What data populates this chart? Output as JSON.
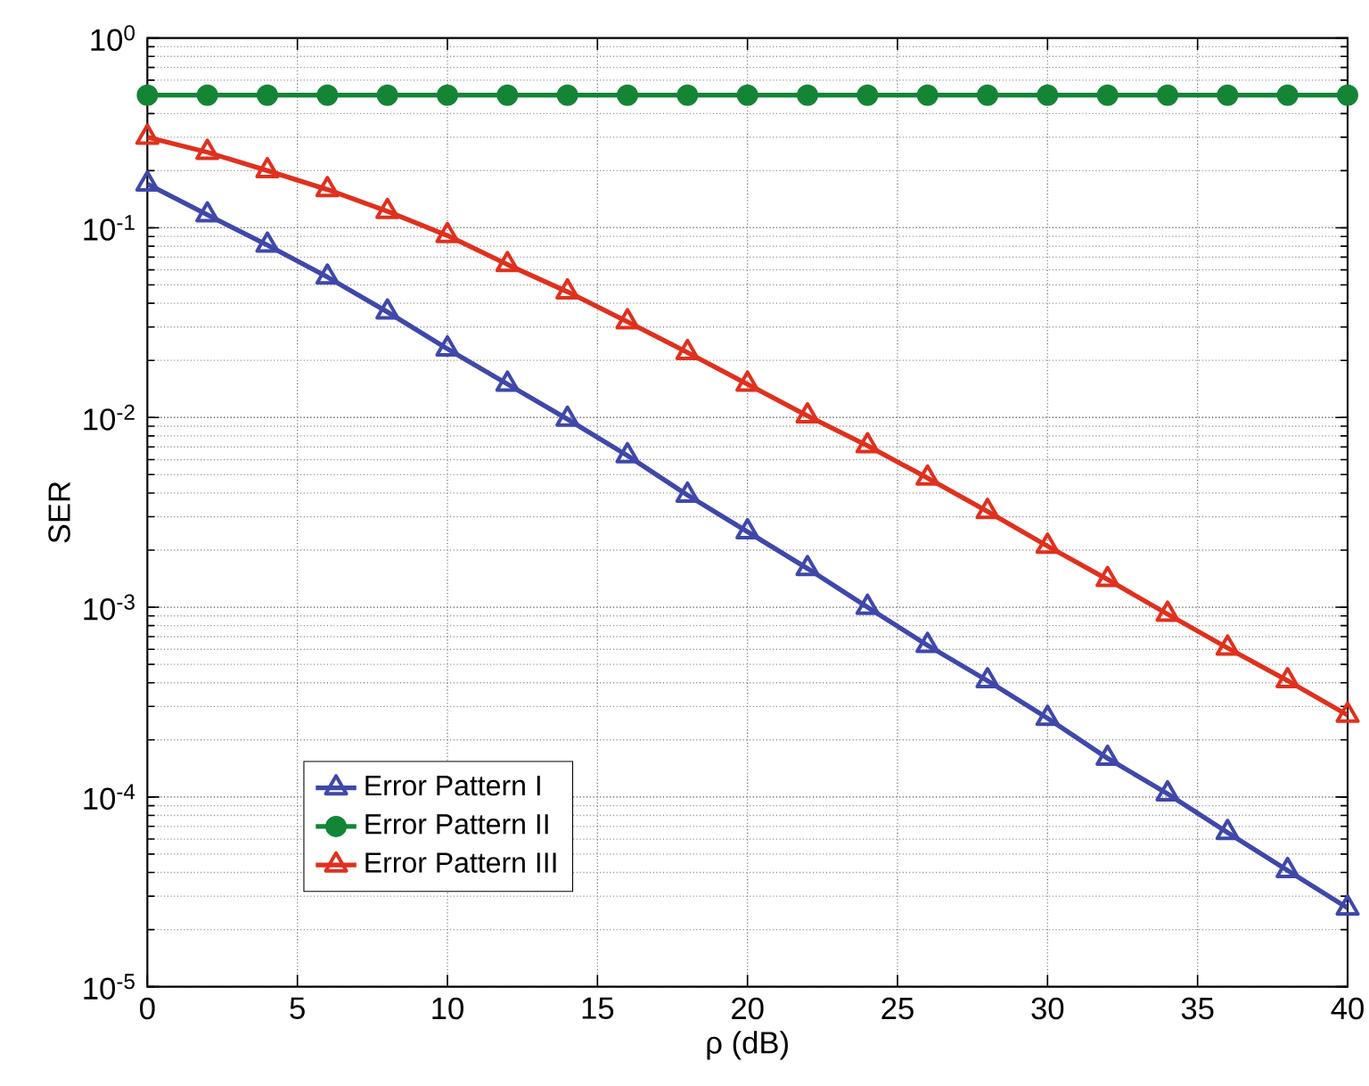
{
  "chart_data": {
    "type": "line",
    "xlabel": "ρ (dB)",
    "ylabel": "SER",
    "x": [
      0,
      2,
      4,
      6,
      8,
      10,
      12,
      14,
      16,
      18,
      20,
      22,
      24,
      26,
      28,
      30,
      32,
      34,
      36,
      38,
      40
    ],
    "series": [
      {
        "name": "Error Pattern I",
        "color": "#3f48aa",
        "marker": "triangle",
        "values": [
          0.17,
          0.117,
          0.081,
          0.055,
          0.036,
          0.023,
          0.015,
          0.0098,
          0.0063,
          0.0039,
          0.0025,
          0.0016,
          0.001,
          0.00063,
          0.00041,
          0.00026,
          0.00016,
          0.000104,
          6.5e-05,
          4.1e-05,
          2.6e-05
        ]
      },
      {
        "name": "Error Pattern II",
        "color": "#138535",
        "marker": "circle",
        "values": [
          0.5,
          0.5,
          0.5,
          0.5,
          0.5,
          0.5,
          0.5,
          0.5,
          0.5,
          0.5,
          0.5,
          0.5,
          0.5,
          0.5,
          0.5,
          0.5,
          0.5,
          0.5,
          0.5,
          0.5,
          0.5
        ]
      },
      {
        "name": "Error Pattern III",
        "color": "#e0301e",
        "marker": "triangle",
        "values": [
          0.3,
          0.25,
          0.2,
          0.159,
          0.122,
          0.091,
          0.064,
          0.046,
          0.032,
          0.022,
          0.015,
          0.0102,
          0.0071,
          0.0048,
          0.0032,
          0.0021,
          0.0014,
          0.00092,
          0.00061,
          0.00041,
          0.00027
        ]
      }
    ],
    "log": "y",
    "xlim": [
      0,
      40
    ],
    "ylim": [
      1e-05,
      1
    ],
    "xticks": [
      0,
      5,
      10,
      15,
      20,
      25,
      30,
      35,
      40
    ],
    "yticks": [
      {
        "value": 1e-05,
        "label": "10$^{-5}$"
      },
      {
        "value": 0.0001,
        "label": "10$^{-4}$"
      },
      {
        "value": 0.001,
        "label": "10$^{-3}$"
      },
      {
        "value": 0.01,
        "label": "10$^{-2}$"
      },
      {
        "value": 0.1,
        "label": "10$^{-1}$"
      },
      {
        "value": 1,
        "label": "10$^{0}$"
      }
    ],
    "grid": true,
    "legend": "bottom left",
    "line_style": "solid"
  }
}
